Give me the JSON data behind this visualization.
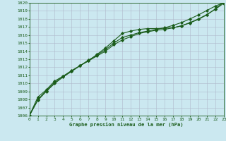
{
  "xlabel": "Graphe pression niveau de la mer (hPa)",
  "ylim": [
    1006,
    1020
  ],
  "xlim": [
    0,
    23
  ],
  "yticks": [
    1006,
    1007,
    1008,
    1009,
    1010,
    1011,
    1012,
    1013,
    1014,
    1015,
    1016,
    1017,
    1018,
    1019,
    1020
  ],
  "xticks": [
    0,
    1,
    2,
    3,
    4,
    5,
    6,
    7,
    8,
    9,
    10,
    11,
    12,
    13,
    14,
    15,
    16,
    17,
    18,
    19,
    20,
    21,
    22,
    23
  ],
  "bg_color": "#cbe8f0",
  "grid_color": "#b0b8cc",
  "line_color": "#1a5c1a",
  "line1": [
    1006.0,
    1008.3,
    1009.2,
    1010.3,
    1010.9,
    1011.6,
    1012.2,
    1012.8,
    1013.6,
    1014.4,
    1015.3,
    1016.2,
    1016.5,
    1016.7,
    1016.8,
    1016.8,
    1016.85,
    1016.9,
    1017.15,
    1017.5,
    1017.95,
    1018.5,
    1019.25,
    1020.1
  ],
  "line2": [
    1006.0,
    1008.0,
    1009.1,
    1010.1,
    1010.9,
    1011.5,
    1012.2,
    1012.8,
    1013.4,
    1014.0,
    1014.8,
    1015.4,
    1015.8,
    1016.2,
    1016.4,
    1016.6,
    1016.7,
    1016.9,
    1017.15,
    1017.55,
    1018.0,
    1018.55,
    1019.2,
    1019.95
  ],
  "line3": [
    1006.0,
    1007.9,
    1009.0,
    1010.0,
    1010.8,
    1011.5,
    1012.2,
    1012.9,
    1013.5,
    1014.2,
    1015.0,
    1015.7,
    1016.0,
    1016.3,
    1016.5,
    1016.7,
    1016.9,
    1017.2,
    1017.55,
    1018.0,
    1018.5,
    1019.05,
    1019.6,
    1020.0
  ]
}
